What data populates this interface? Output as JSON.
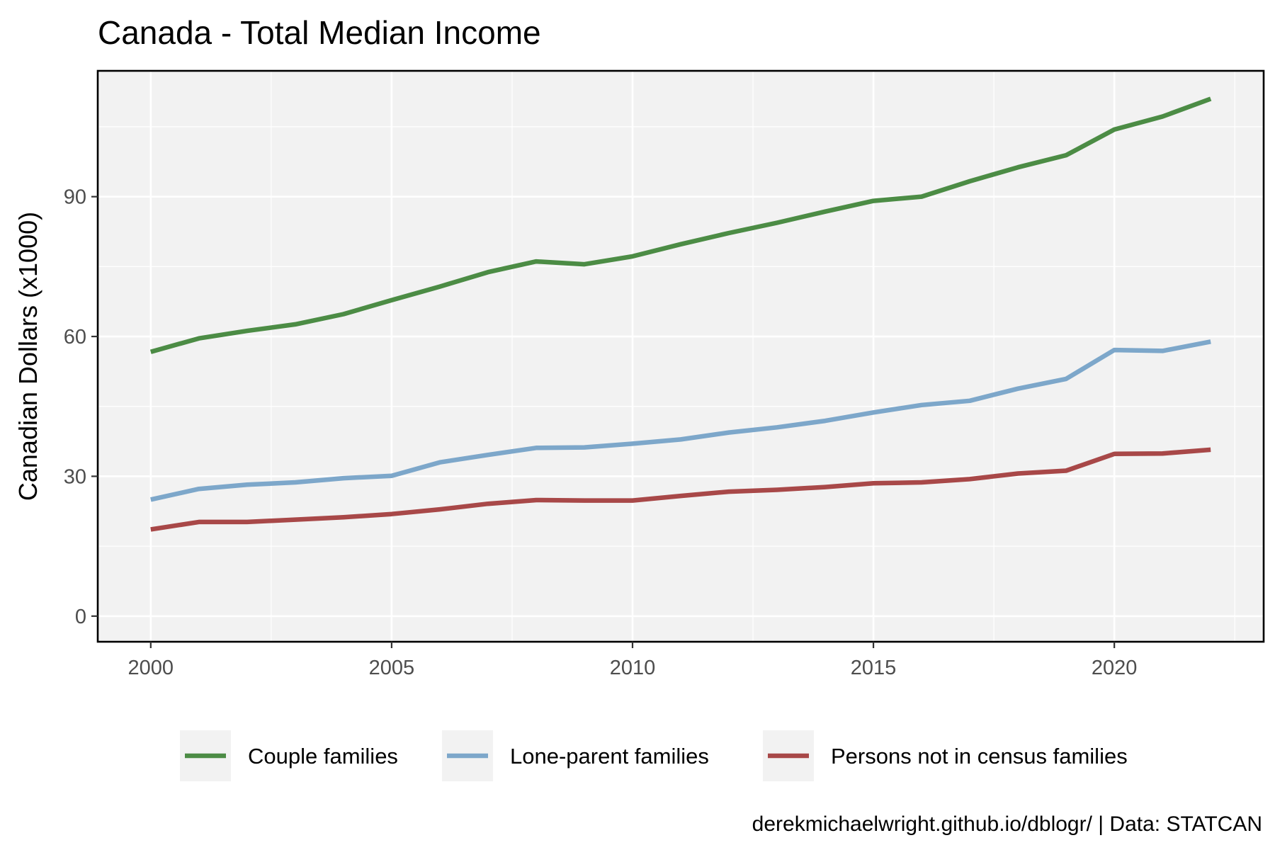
{
  "chart_data": {
    "type": "line",
    "title": "Canada - Total Median Income",
    "ylabel": "Canadian Dollars (x1000)",
    "xlabel": "",
    "caption": "derekmichaelwright.github.io/dblogr/ | Data: STATCAN",
    "xlim": [
      1998.9,
      2023.1
    ],
    "ylim": [
      -5.5,
      117
    ],
    "xticks": [
      2000,
      2005,
      2010,
      2015,
      2020
    ],
    "xtick_labels": [
      "2000",
      "2005",
      "2010",
      "2015",
      "2020"
    ],
    "yticks": [
      0,
      30,
      60,
      90
    ],
    "ytick_labels": [
      "0",
      "30",
      "60",
      "90"
    ],
    "x_minor_grid": [
      2002.5,
      2007.5,
      2012.5,
      2017.5,
      2022.5
    ],
    "y_minor_grid": [
      15,
      45,
      75,
      105
    ],
    "grid": true,
    "legend_position": "bottom",
    "panel_background": "#f2f2f2",
    "x": [
      2000,
      2001,
      2002,
      2003,
      2004,
      2005,
      2006,
      2007,
      2008,
      2009,
      2010,
      2011,
      2012,
      2013,
      2014,
      2015,
      2016,
      2017,
      2018,
      2019,
      2020,
      2021,
      2022
    ],
    "series": [
      {
        "name": "Couple families",
        "color": "#4c8c45",
        "values": [
          56.7,
          59.6,
          61.2,
          62.6,
          64.8,
          67.8,
          70.7,
          73.8,
          76.1,
          75.5,
          77.2,
          79.8,
          82.2,
          84.4,
          86.8,
          89.1,
          90.0,
          93.3,
          96.3,
          98.9,
          104.4,
          107.2,
          111.0
        ]
      },
      {
        "name": "Lone-parent families",
        "color": "#7da7ca",
        "values": [
          25.0,
          27.3,
          28.2,
          28.7,
          29.6,
          30.1,
          33.0,
          34.6,
          36.1,
          36.2,
          37.0,
          37.9,
          39.4,
          40.5,
          41.9,
          43.7,
          45.3,
          46.2,
          48.8,
          50.9,
          57.1,
          56.9,
          58.9
        ]
      },
      {
        "name": "Persons not in census families",
        "color": "#a84848",
        "values": [
          18.6,
          20.2,
          20.2,
          20.7,
          21.2,
          21.9,
          22.9,
          24.1,
          24.9,
          24.8,
          24.8,
          25.8,
          26.7,
          27.1,
          27.7,
          28.5,
          28.7,
          29.4,
          30.6,
          31.2,
          34.8,
          34.9,
          35.7
        ]
      }
    ]
  }
}
